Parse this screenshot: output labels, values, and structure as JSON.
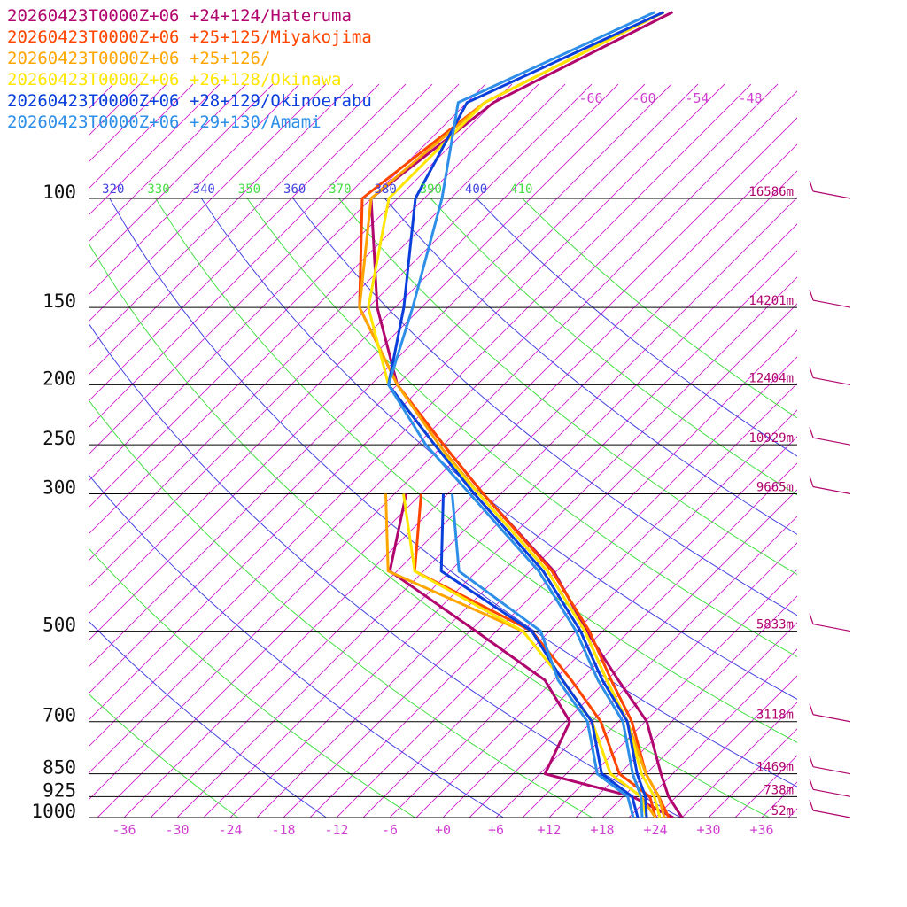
{
  "type": "skew-t",
  "legend": [
    "20260423T0000Z+06 +24+124/Hateruma",
    "20260423T0000Z+06 +25+125/Miyakojima",
    "20260423T0000Z+06 +25+126/",
    "20260423T0000Z+06 +26+128/Okinawa",
    "20260423T0000Z+06 +28+129/Okinoerabu",
    "20260423T0000Z+06 +29+130/Amami"
  ],
  "plim": [
    1000,
    100
  ],
  "tlim": [
    -40,
    40
  ],
  "pressure_ticks": [
    100,
    150,
    200,
    250,
    300,
    500,
    700,
    850,
    925,
    1000
  ],
  "height_labels": [
    {
      "value": 16586,
      "label": "16586m"
    },
    {
      "value": 14201,
      "label": "14201m"
    },
    {
      "value": 12404,
      "label": "12404m"
    },
    {
      "value": 10929,
      "label": "10929m"
    },
    {
      "value": 9665,
      "label": "9665m"
    },
    {
      "value": 5833,
      "label": "5833m"
    },
    {
      "value": 3118,
      "label": "3118m"
    },
    {
      "value": 1469,
      "label": "1469m"
    },
    {
      "value": 738,
      "label": "738m"
    },
    {
      "value": 52,
      "label": "52m"
    }
  ],
  "temperature_ticks": [
    -36,
    -30,
    -24,
    -18,
    -12,
    -6,
    {
      "value": 0,
      "label": "+0"
    },
    {
      "value": 6,
      "label": "+6"
    },
    {
      "value": 12,
      "label": "+12"
    },
    {
      "value": 18,
      "label": "+18"
    },
    {
      "value": 24,
      "label": "+24"
    },
    {
      "value": 30,
      "label": "+30"
    },
    {
      "value": 36,
      "label": "+36"
    }
  ],
  "isotherm_labels": [
    -66,
    -60,
    -54,
    -48
  ],
  "theta_labels": [
    320,
    330,
    340,
    350,
    360,
    370,
    380,
    390,
    400,
    410
  ],
  "pressures": [
    1000,
    925,
    850,
    700,
    600,
    500,
    400,
    300,
    250,
    200,
    150,
    100,
    70,
    50
  ],
  "soundings": [
    {
      "label_index": 0,
      "color": "#b0066e",
      "temperature": [
        27,
        23.1,
        19.7,
        12.2,
        4.3,
        -4.8,
        -15.3,
        -32,
        -42,
        -54,
        -65,
        -78,
        -75,
        -65
      ],
      "dewpoint": [
        26,
        19,
        6.6,
        3.5,
        -4,
        -17.3,
        -33.8,
        -40.7
      ]
    },
    {
      "label_index": 1,
      "color": "#ff4500",
      "temperature": [
        25.5,
        22,
        18,
        10.5,
        3.5,
        -4.5,
        -15.5,
        -32,
        -42,
        -54,
        -67,
        -79,
        -76,
        -66
      ],
      "dewpoint": [
        24,
        21,
        15,
        7,
        -1,
        -11,
        -31,
        -39
      ]
    },
    {
      "label_index": 2,
      "color": "#ffa500",
      "temperature": [
        25,
        22,
        18,
        10,
        3,
        -5,
        -16,
        -32.5,
        -42.5,
        -54,
        -67,
        -78,
        -76,
        -66
      ],
      "dewpoint": [
        24,
        20,
        14,
        6,
        -2,
        -12,
        -34,
        -43
      ]
    },
    {
      "label_index": 3,
      "color": "#ffe600",
      "temperature": [
        24.5,
        21.5,
        17.5,
        10,
        3,
        -5,
        -16,
        -32.5,
        -43,
        -55,
        -66,
        -76,
        -76,
        -66
      ],
      "dewpoint": [
        23,
        20,
        14,
        6,
        -2,
        -12,
        -31,
        -41
      ]
    },
    {
      "label_index": 4,
      "color": "#0b3fdc",
      "temperature": [
        23,
        20.5,
        17,
        10,
        2.5,
        -5.5,
        -16.5,
        -33,
        -43,
        -55,
        -62,
        -73,
        -78,
        -66
      ],
      "dewpoint": [
        22,
        19,
        13,
        6,
        -2,
        -11,
        -28,
        -36.5
      ]
    },
    {
      "label_index": 5,
      "color": "#2e8fe8",
      "temperature": [
        22.5,
        20,
        16.5,
        9.5,
        2,
        -6,
        -17,
        -33.5,
        -44,
        -55,
        -61,
        -70,
        -79,
        -67
      ],
      "dewpoint": [
        21.5,
        18.5,
        12.5,
        5.5,
        -2.5,
        -10,
        -26,
        -35.5
      ]
    }
  ]
}
